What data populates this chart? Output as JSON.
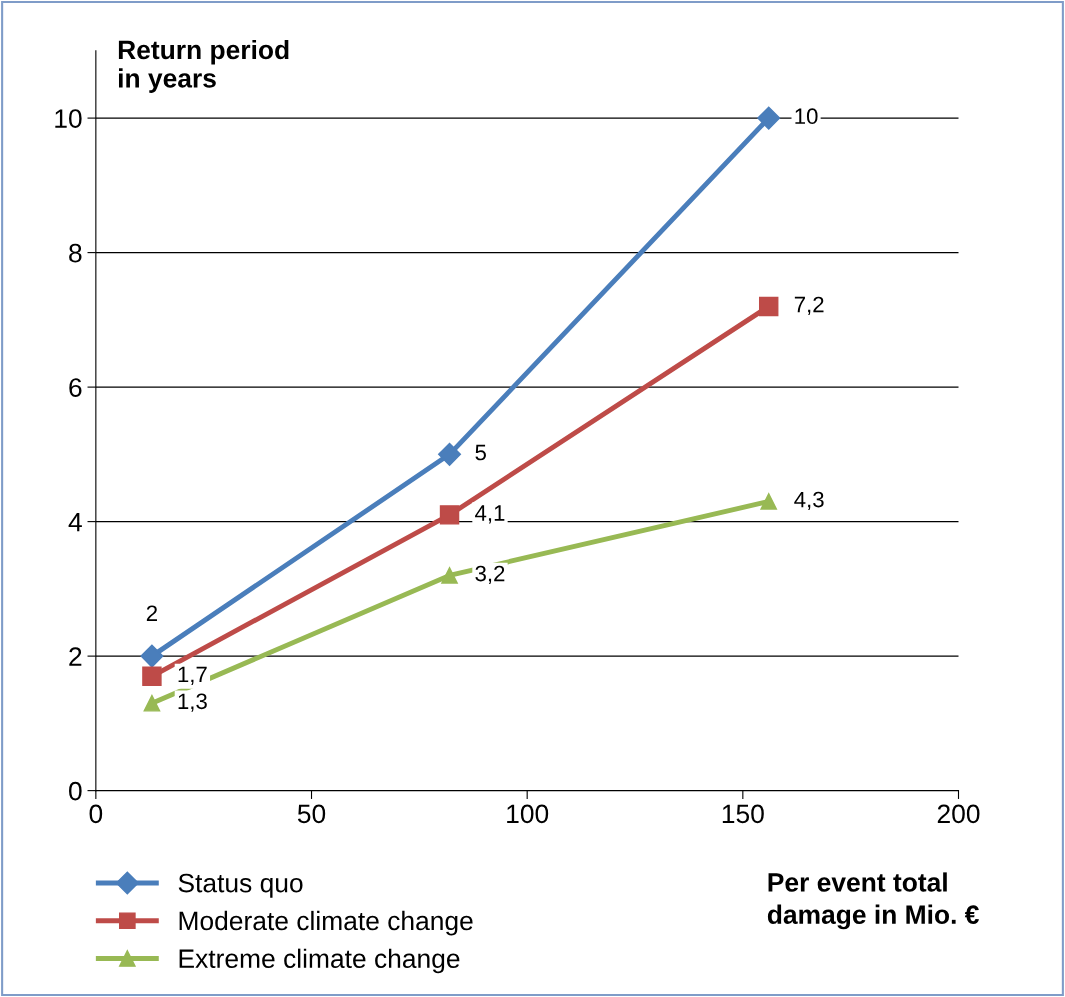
{
  "chart_data": {
    "type": "line",
    "ylabel": "Return period\nin years",
    "xlabel": "Per event total\ndamage in Mio. €",
    "xlim": [
      0,
      200
    ],
    "xticks": [
      0,
      50,
      100,
      150,
      200
    ],
    "ylim": [
      0,
      11
    ],
    "yticks": [
      0,
      2,
      4,
      6,
      8,
      10
    ],
    "grid": "y",
    "legend": "bottom left",
    "line_style": "solid",
    "series": [
      {
        "name": "Status quo",
        "color": "#4a7ebb",
        "marker": "diamond",
        "x": [
          13,
          82,
          156
        ],
        "values": [
          2,
          5,
          10
        ],
        "value_labels": [
          "2",
          "5",
          "10"
        ]
      },
      {
        "name": "Moderate climate change",
        "color": "#be4b48",
        "marker": "square",
        "x": [
          13,
          82,
          156
        ],
        "values": [
          1.7,
          4.1,
          7.2
        ],
        "value_labels": [
          "1,7",
          "4,1",
          "7,2"
        ]
      },
      {
        "name": "Extreme climate change",
        "color": "#98b954",
        "marker": "triangle",
        "x": [
          13,
          82,
          156
        ],
        "values": [
          1.3,
          3.2,
          4.3
        ],
        "value_labels": [
          "1,3",
          "3,2",
          "4,3"
        ]
      }
    ]
  }
}
